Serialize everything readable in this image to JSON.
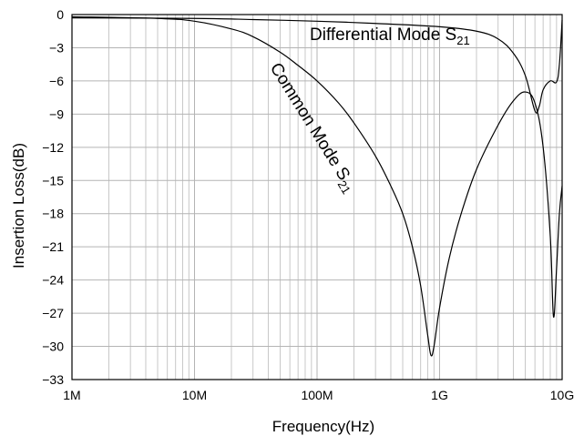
{
  "chart_data": {
    "type": "line",
    "xlabel": "Frequency(Hz)",
    "ylabel": "Insertion Loss(dB)",
    "x_scale": "log",
    "xlim": [
      1000000,
      10000000000
    ],
    "ylim": [
      -33,
      0
    ],
    "grid": true,
    "x_ticks": [
      {
        "value": 1000000,
        "label": "1M"
      },
      {
        "value": 10000000,
        "label": "10M"
      },
      {
        "value": 100000000,
        "label": "100M"
      },
      {
        "value": 1000000000,
        "label": "1G"
      },
      {
        "value": 10000000000,
        "label": "10G"
      }
    ],
    "y_ticks": [
      0,
      -3,
      -6,
      -9,
      -12,
      -15,
      -18,
      -21,
      -24,
      -27,
      -30,
      -33
    ],
    "series": [
      {
        "name": "Differential Mode S21",
        "label_text": "Differential Mode S",
        "label_subscript": "21",
        "x": [
          1000000,
          10000000,
          30000000,
          100000000,
          300000000,
          1000000000,
          2000000000,
          3000000000,
          4000000000,
          5000000000,
          6000000000,
          6500000000,
          7000000000,
          8000000000,
          9000000000,
          9500000000,
          10000000000
        ],
        "y": [
          -0.3,
          -0.35,
          -0.45,
          -0.6,
          -0.8,
          -1.1,
          -1.5,
          -2.2,
          -3.5,
          -5.5,
          -8.7,
          -8.3,
          -6.8,
          -6.0,
          -6.1,
          -4.5,
          -0.5
        ]
      },
      {
        "name": "Common Mode S21",
        "label_text": "Common Mode S",
        "label_subscript": "21",
        "x": [
          1000000,
          5000000,
          10000000,
          20000000,
          30000000,
          50000000,
          70000000,
          100000000,
          150000000,
          200000000,
          300000000,
          400000000,
          500000000,
          600000000,
          700000000,
          800000000,
          850000000,
          900000000,
          1000000000,
          1200000000,
          1500000000,
          2000000000,
          3000000000,
          4000000000,
          5000000000,
          6000000000,
          7000000000,
          8000000000,
          8500000000,
          9000000000,
          9500000000,
          10000000000
        ],
        "y": [
          -0.2,
          -0.35,
          -0.6,
          -1.3,
          -2.0,
          -3.4,
          -4.6,
          -6.0,
          -8.0,
          -9.8,
          -12.8,
          -15.5,
          -18.0,
          -21.0,
          -24.5,
          -29.0,
          -30.8,
          -30.0,
          -26.5,
          -22.0,
          -18.0,
          -14.0,
          -10.0,
          -7.8,
          -7.0,
          -8.0,
          -12.0,
          -20.0,
          -27.3,
          -23.0,
          -18.0,
          -15.5
        ]
      }
    ]
  }
}
